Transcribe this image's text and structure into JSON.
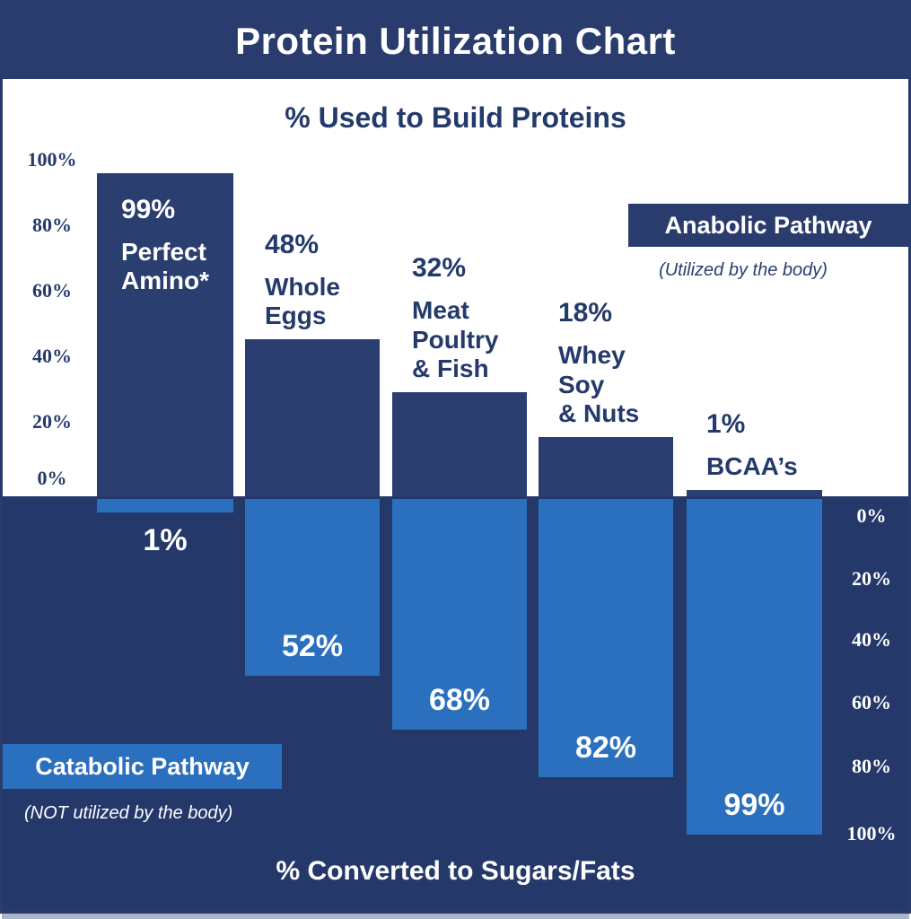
{
  "title": "Protein Utilization Chart",
  "top_section": {
    "heading": "% Used to Build Proteins",
    "axis_labels": [
      "100%",
      "80%",
      "60%",
      "40%",
      "20%",
      "0%"
    ]
  },
  "bottom_section": {
    "heading": "% Converted to Sugars/Fats",
    "axis_labels": [
      "0%",
      "20%",
      "40%",
      "60%",
      "80%",
      "100%"
    ]
  },
  "anabolic": {
    "label": "Anabolic Pathway",
    "sublabel": "(Utilized by the body)"
  },
  "catabolic": {
    "label": "Catabolic Pathway",
    "sublabel": "(NOT utilized by the body)"
  },
  "bars": [
    {
      "pct": "99%",
      "name": "Perfect\nAmino*",
      "down_pct": "1%"
    },
    {
      "pct": "48%",
      "name": "Whole\nEggs",
      "down_pct": "52%"
    },
    {
      "pct": "32%",
      "name": "Meat\nPoultry\n& Fish",
      "down_pct": "68%"
    },
    {
      "pct": "18%",
      "name": "Whey\nSoy\n& Nuts",
      "down_pct": "82%"
    },
    {
      "pct": "1%",
      "name": "BCAA’s",
      "down_pct": "99%"
    }
  ],
  "chart_data": {
    "type": "bar",
    "title": "Protein Utilization Chart",
    "categories": [
      "Perfect Amino*",
      "Whole Eggs",
      "Meat Poultry & Fish",
      "Whey Soy & Nuts",
      "BCAA's"
    ],
    "series": [
      {
        "name": "Anabolic Pathway - % Used to Build Proteins (Utilized by the body)",
        "values": [
          99,
          48,
          32,
          18,
          1
        ]
      },
      {
        "name": "Catabolic Pathway - % Converted to Sugars/Fats (NOT utilized by the body)",
        "values": [
          1,
          52,
          68,
          82,
          99
        ]
      }
    ],
    "ylabel_top": "% Used to Build Proteins",
    "ylabel_bottom": "% Converted to Sugars/Fats",
    "ylim_top": [
      0,
      100
    ],
    "ylim_bottom": [
      0,
      100
    ],
    "grid": false,
    "orientation": "diverging-vertical",
    "legend_position": "in-chart annotation boxes"
  },
  "colors": {
    "navy_background": "#25386A",
    "navy_bar": "#2B3E70",
    "title_band": "#2A3C6E",
    "light_blue": "#2B70BE",
    "heading_text": "#243A6B",
    "white": "#FFFFFF"
  }
}
